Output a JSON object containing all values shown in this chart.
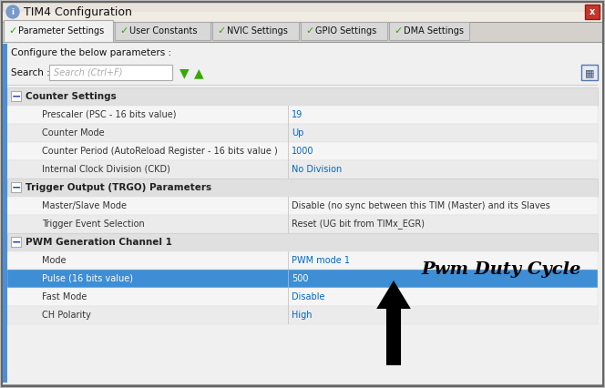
{
  "title": "TIM4 Configuration",
  "tabs": [
    "Parameter Settings",
    "User Constants",
    "NVIC Settings",
    "GPIO Settings",
    "DMA Settings"
  ],
  "tab_widths": [
    120,
    105,
    95,
    95,
    88
  ],
  "search_label": "Search :",
  "search_placeholder": "Search (Ctrl+F)",
  "configure_text": "Configure the below parameters :",
  "sections": [
    {
      "name": "Counter Settings",
      "rows": [
        {
          "label": "Prescaler (PSC - 16 bits value)",
          "value": "19",
          "highlighted": false,
          "value_black": false
        },
        {
          "label": "Counter Mode",
          "value": "Up",
          "highlighted": false,
          "value_black": false
        },
        {
          "label": "Counter Period (AutoReload Register - 16 bits value )",
          "value": "1000",
          "highlighted": false,
          "value_black": false
        },
        {
          "label": "Internal Clock Division (CKD)",
          "value": "No Division",
          "highlighted": false,
          "value_black": false
        }
      ]
    },
    {
      "name": "Trigger Output (TRGO) Parameters",
      "rows": [
        {
          "label": "Master/Slave Mode",
          "value": "Disable (no sync between this TIM (Master) and its Slaves",
          "highlighted": false,
          "value_black": true
        },
        {
          "label": "Trigger Event Selection",
          "value": "Reset (UG bit from TIMx_EGR)",
          "highlighted": false,
          "value_black": true
        }
      ]
    },
    {
      "name": "PWM Generation Channel 1",
      "rows": [
        {
          "label": "Mode",
          "value": "PWM mode 1",
          "highlighted": false,
          "value_black": false
        },
        {
          "label": "Pulse (16 bits value)",
          "value": "500",
          "highlighted": true,
          "value_black": false
        },
        {
          "label": "Fast Mode",
          "value": "Disable",
          "highlighted": false,
          "value_black": false
        },
        {
          "label": "CH Polarity",
          "value": "High",
          "highlighted": false,
          "value_black": false
        }
      ]
    }
  ],
  "annotation_text": "Pwm Duty Cycle",
  "outer_bg": "#c0c0c0",
  "dialog_bg": "#f0f0f0",
  "titlebar_bg": "#e8e4dc",
  "titlebar_gradient_end": "#f8f6f0",
  "close_btn_color": "#c0392b",
  "tab_active_bg": "#f0f0f0",
  "tab_inactive_bg": "#d8d8d8",
  "tab_border": "#aaaaaa",
  "section_header_bg": "#e0e0e0",
  "row_bg_even": "#f5f5f5",
  "row_bg_odd": "#ebebeb",
  "highlight_bg": "#3d8ed4",
  "highlight_fg": "#ffffff",
  "value_blue": "#0066cc",
  "value_black": "#333333",
  "label_color": "#333333",
  "green_color": "#33aa00",
  "section_name_color": "#222222",
  "minus_color": "#2244aa",
  "search_border": "#aaaaaa",
  "grid_icon_border": "#5577aa",
  "left_strip_color": "#4a90d9",
  "arrow_fill": "#000000",
  "arrow_outline": "#000000"
}
